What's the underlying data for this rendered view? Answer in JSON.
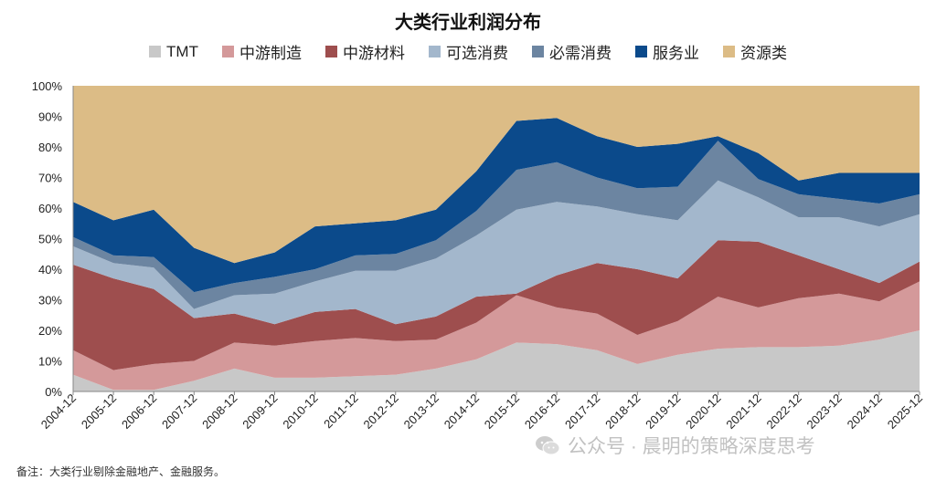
{
  "chart_data": {
    "type": "area",
    "stacked": true,
    "percent": true,
    "title": "大类行业利润分布",
    "categories": [
      "2004-12",
      "2005-12",
      "2006-12",
      "2007-12",
      "2008-12",
      "2009-12",
      "2010-12",
      "2011-12",
      "2012-12",
      "2013-12",
      "2014-12",
      "2015-12",
      "2016-12",
      "2017-12",
      "2018-12",
      "2019-12",
      "2020-12",
      "2021-12",
      "2022-12",
      "2023-12",
      "2024-12",
      "2025-12"
    ],
    "yticks": [
      "0%",
      "10%",
      "20%",
      "30%",
      "40%",
      "50%",
      "60%",
      "70%",
      "80%",
      "90%",
      "100%"
    ],
    "ylim": [
      0,
      100
    ],
    "legend_position": "top",
    "grid": false,
    "series": [
      {
        "name": "TMT",
        "color": "#c8c8c8",
        "values": [
          5.5,
          0.5,
          0.5,
          3.5,
          7.5,
          4.5,
          4.5,
          5,
          5.5,
          7.5,
          10.5,
          16,
          15.5,
          13.5,
          9,
          12,
          14,
          14.5,
          14.5,
          15,
          17,
          20
        ]
      },
      {
        "name": "中游制造",
        "color": "#d4999a",
        "values": [
          8,
          6.5,
          8.5,
          6.5,
          8.5,
          10.5,
          12,
          12.5,
          11,
          9.5,
          12,
          15.5,
          12,
          12,
          9.5,
          11,
          17,
          13,
          16,
          17,
          12.5,
          16
        ]
      },
      {
        "name": "中游材料",
        "color": "#9e4e4e",
        "values": [
          28,
          30,
          24.5,
          14,
          9.5,
          7,
          9.5,
          9.5,
          5.5,
          7.5,
          8.5,
          0.5,
          10.5,
          16.5,
          21.5,
          14,
          18.5,
          21.5,
          14,
          8,
          6,
          6.5
        ]
      },
      {
        "name": "可选消费",
        "color": "#a3b7cc",
        "values": [
          6,
          5,
          7,
          3,
          6,
          10,
          10,
          12.5,
          17.5,
          19,
          20,
          27.5,
          24,
          18.5,
          18,
          19,
          19.5,
          14.5,
          12.5,
          17,
          18.5,
          15.5
        ]
      },
      {
        "name": "必需消费",
        "color": "#6c85a1",
        "values": [
          3,
          2.5,
          3.5,
          5.5,
          4,
          5.5,
          4,
          5,
          5.5,
          6,
          8,
          13,
          13,
          9.5,
          8.5,
          11,
          13,
          6,
          7.5,
          6,
          7.5,
          6.5
        ]
      },
      {
        "name": "服务业",
        "color": "#0b4a8b",
        "values": [
          11.5,
          11.5,
          15.5,
          14.5,
          6.5,
          8,
          14,
          10.5,
          11,
          10,
          13,
          16,
          14.5,
          13.5,
          13.5,
          14,
          1.5,
          8.5,
          4.5,
          8.5,
          10,
          7
        ]
      },
      {
        "name": "资源类",
        "color": "#dcbc86",
        "values": [
          38,
          44,
          40.5,
          53,
          58,
          54.5,
          46,
          45,
          44,
          40.5,
          28,
          11.5,
          10.5,
          16.5,
          20,
          19,
          16.5,
          22,
          31,
          28.5,
          28.5,
          28.5
        ]
      }
    ]
  },
  "note": "备注：大类行业剔除金融地产、金融服务。",
  "watermark": "公众号 · 晨明的策略深度思考",
  "wechat_icon": "wechat-icon"
}
